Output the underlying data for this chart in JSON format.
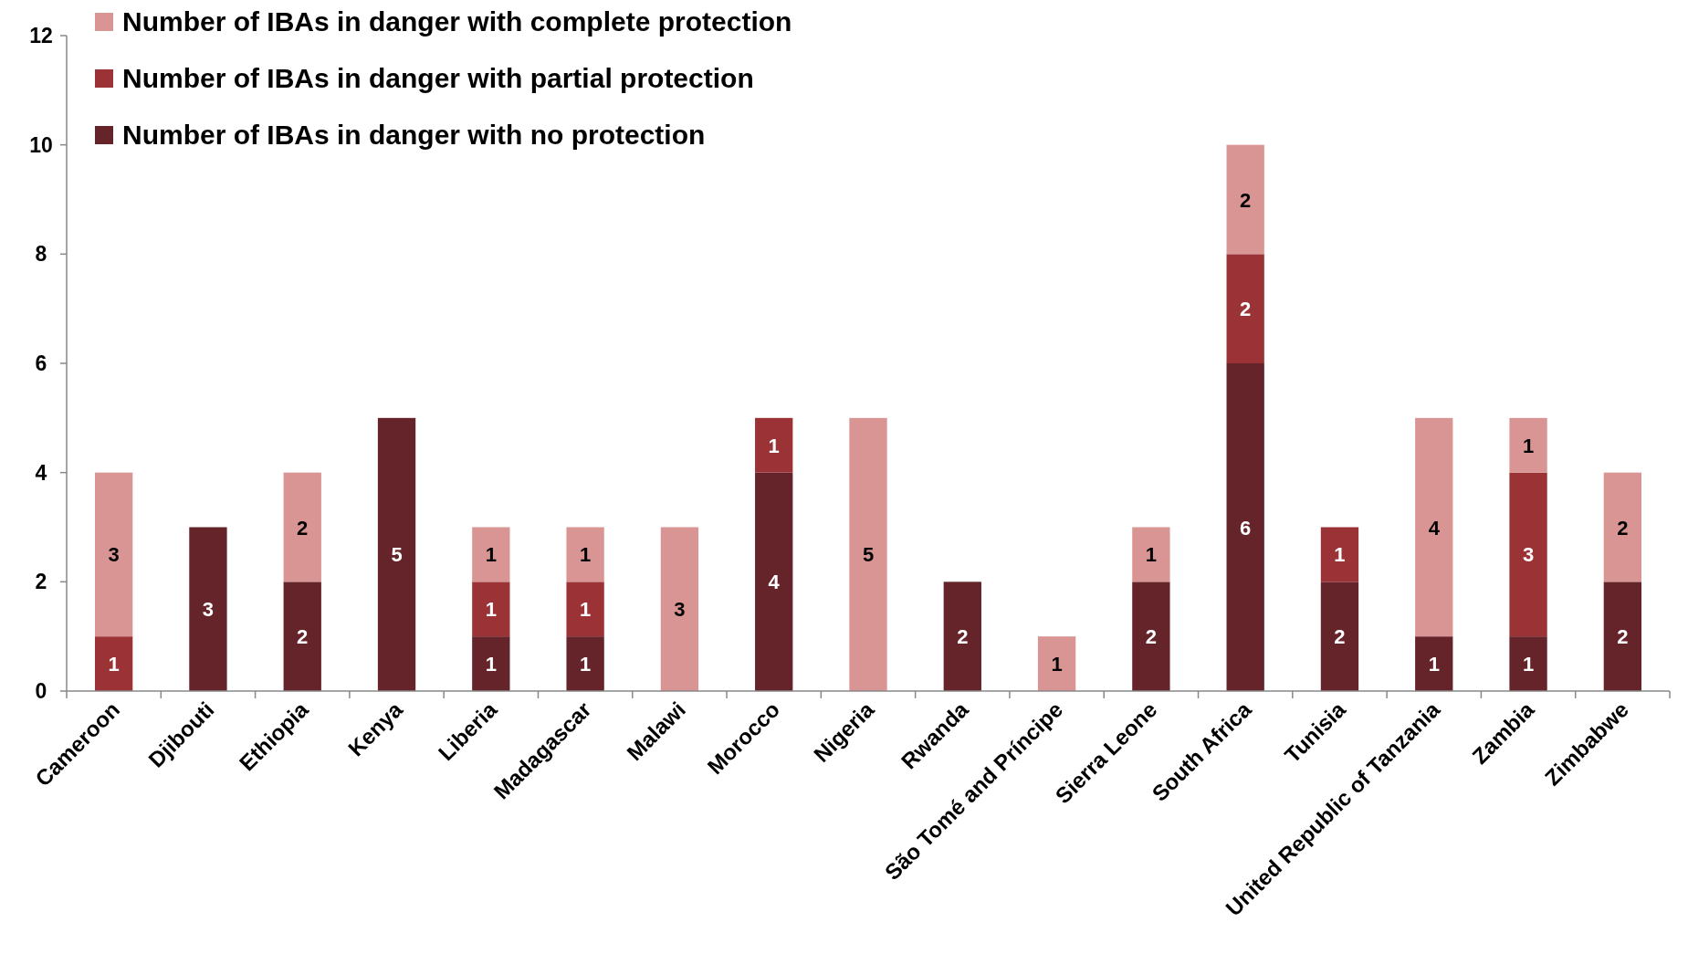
{
  "chart_data": {
    "type": "bar",
    "stacked": true,
    "categories": [
      "Cameroon",
      "Djibouti",
      "Ethiopia",
      "Kenya",
      "Liberia",
      "Madagascar",
      "Malawi",
      "Morocco",
      "Nigeria",
      "Rwanda",
      "São Tomé and Príncipe",
      "Sierra Leone",
      "South Africa",
      "Tunisia",
      "United Republic of Tanzania",
      "Zambia",
      "Zimbabwe"
    ],
    "series": [
      {
        "name": "Number of IBAs in danger with no protection",
        "color": "#65232a",
        "values": [
          null,
          3,
          2,
          5,
          1,
          1,
          null,
          4,
          null,
          2,
          null,
          2,
          6,
          2,
          1,
          1,
          2
        ]
      },
      {
        "name": "Number of IBAs in danger with partial protection",
        "color": "#9b3336",
        "values": [
          1,
          null,
          null,
          null,
          1,
          1,
          null,
          1,
          null,
          null,
          null,
          null,
          2,
          1,
          null,
          3,
          null
        ]
      },
      {
        "name": "Number of IBAs in danger with complete protection",
        "color": "#d99594",
        "values": [
          3,
          null,
          2,
          null,
          1,
          1,
          3,
          null,
          5,
          null,
          1,
          1,
          2,
          null,
          4,
          1,
          2
        ]
      }
    ],
    "ylim": [
      0,
      12
    ],
    "yticks": [
      0,
      2,
      4,
      6,
      8,
      10,
      12
    ],
    "grid": false,
    "legend": "top left",
    "data_labels": true
  }
}
